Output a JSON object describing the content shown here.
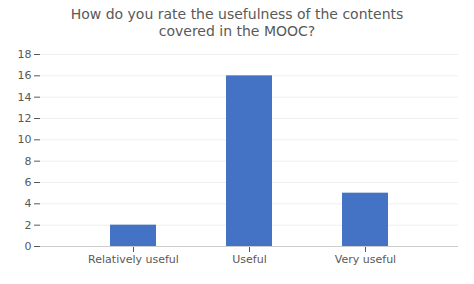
{
  "chart_data": {
    "type": "bar",
    "title": "How do you rate the usefulness of the contents\ncovered in the MOOC?",
    "categories": [
      "Relatively useful",
      "Useful",
      "Very useful"
    ],
    "values": [
      2,
      16,
      5
    ],
    "color": "#4472C4",
    "ylim": [
      0,
      18
    ],
    "yticks": [
      0,
      2,
      4,
      6,
      8,
      10,
      12,
      14,
      16,
      18
    ],
    "grid": true
  }
}
